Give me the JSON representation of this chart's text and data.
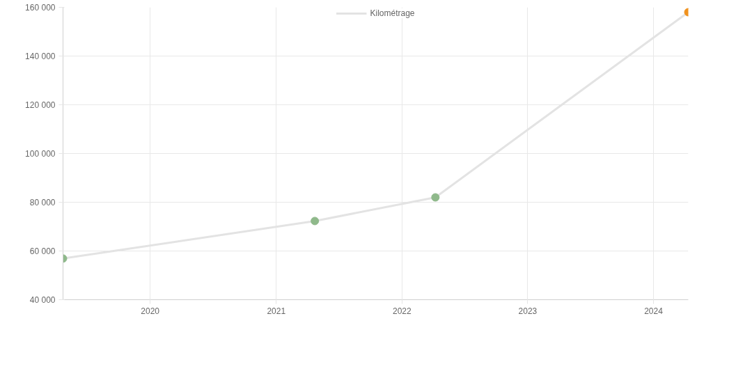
{
  "chart_data": {
    "type": "line",
    "x": [
      "2019-04-23",
      "2021-04-23",
      "2022-04-08",
      "2024-04-11"
    ],
    "series": [
      {
        "name": "Kilométrage",
        "color": "#e3e3e3",
        "colors": [
          "#8fb98b",
          "#8fb98b",
          "#8fb98b",
          "#f0921e"
        ],
        "values": [
          56900,
          72300,
          82000,
          158000
        ]
      }
    ],
    "xlim": [
      "2019-04-23",
      "2024-04-11"
    ],
    "xticks": [
      "2020",
      "2021",
      "2022",
      "2023",
      "2024"
    ],
    "ylim": [
      40000,
      160000
    ],
    "yticks": [
      {
        "value": 40000,
        "label": "40 000"
      },
      {
        "value": 60000,
        "label": "60 000"
      },
      {
        "value": 80000,
        "label": "80 000"
      },
      {
        "value": 100000,
        "label": "100 000"
      },
      {
        "value": 120000,
        "label": "120 000"
      },
      {
        "value": 140000,
        "label": "140 000"
      },
      {
        "value": 160000,
        "label": "160 000"
      }
    ],
    "grid": true,
    "legend": "top",
    "marker": "circle",
    "line_style": "solid"
  }
}
